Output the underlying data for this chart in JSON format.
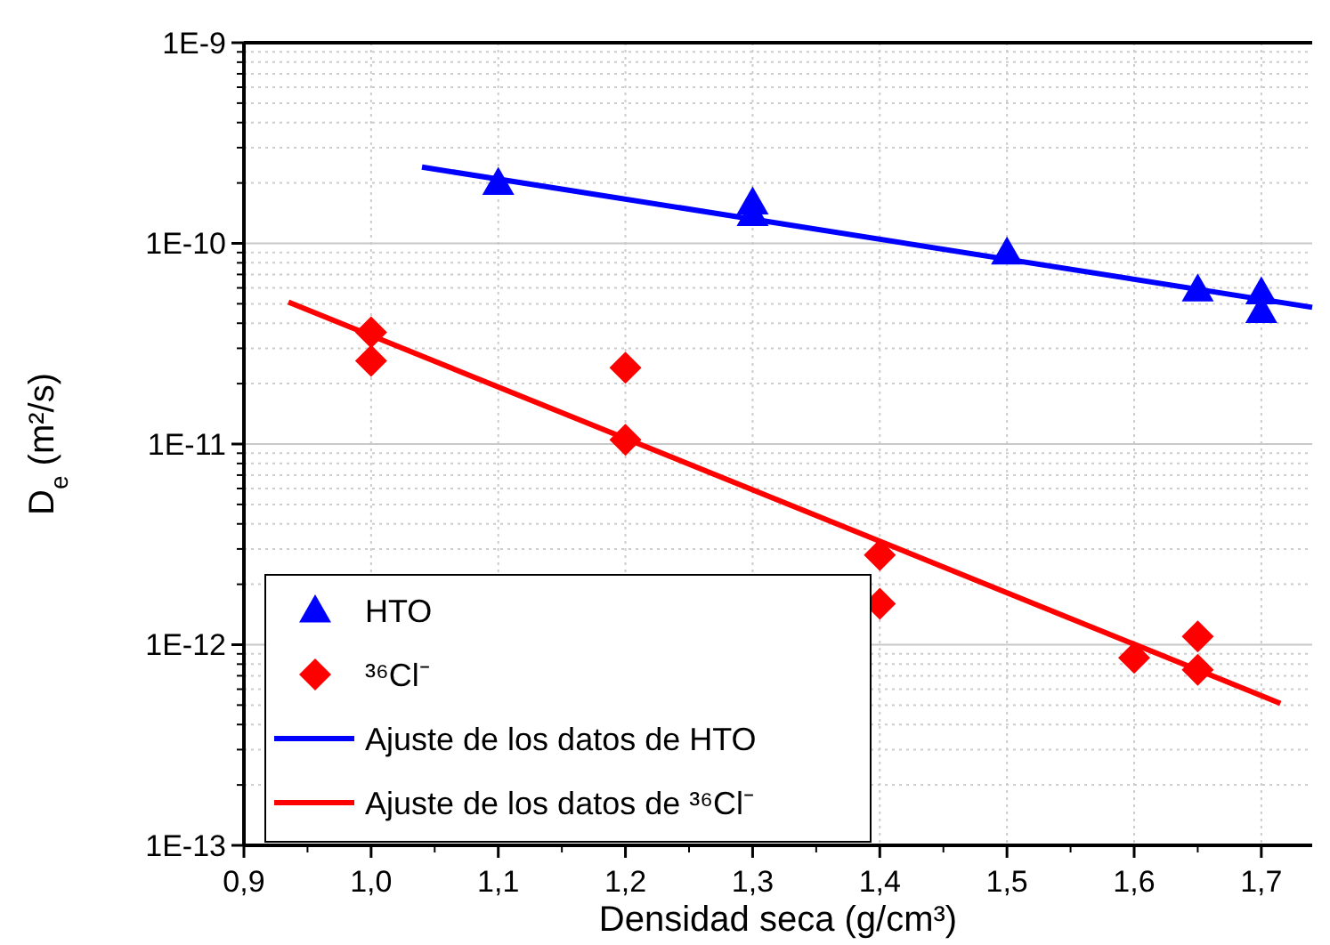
{
  "chart_data": {
    "type": "scatter",
    "xlabel": "Densidad seca (g/cm³)",
    "ylabel": "D$_{e}$ (m²/s)",
    "log": "y",
    "xlim": [
      0.9,
      1.74
    ],
    "xticks": [
      {
        "value": 0.9,
        "label": "0,9"
      },
      {
        "value": 1.0,
        "label": "1,0"
      },
      {
        "value": 1.1,
        "label": "1,1"
      },
      {
        "value": 1.2,
        "label": "1,2"
      },
      {
        "value": 1.3,
        "label": "1,3"
      },
      {
        "value": 1.4,
        "label": "1,4"
      },
      {
        "value": 1.5,
        "label": "1,5"
      },
      {
        "value": 1.6,
        "label": "1,6"
      },
      {
        "value": 1.7,
        "label": "1,7"
      }
    ],
    "ylim": [
      1e-13,
      1e-09
    ],
    "yticks": [
      {
        "value": 1e-13,
        "label": "1E-13"
      },
      {
        "value": 1e-12,
        "label": "1E-12"
      },
      {
        "value": 1e-11,
        "label": "1E-11"
      },
      {
        "value": 1e-10,
        "label": "1E-10"
      },
      {
        "value": 1e-09,
        "label": "1E-9"
      }
    ],
    "grid": true,
    "legend": "bottom left",
    "series": [
      {
        "name": "HTO",
        "marker": "triangle",
        "color": "#0000ff",
        "x": [
          1.1,
          1.3,
          1.3,
          1.5,
          1.65,
          1.7,
          1.7
        ],
        "values": [
          2e-10,
          1.6e-10,
          1.4e-10,
          9e-11,
          5.9e-11,
          5.7e-11,
          4.6e-11
        ]
      },
      {
        "name": "³⁶Cl⁻",
        "marker": "diamond",
        "color": "#ff0000",
        "x": [
          1.0,
          1.0,
          1.2,
          1.2,
          1.4,
          1.4,
          1.6,
          1.65,
          1.65
        ],
        "values": [
          3.6e-11,
          2.6e-11,
          2.4e-11,
          1.05e-11,
          2.8e-12,
          1.6e-12,
          8.6e-13,
          1.1e-12,
          7.5e-13
        ]
      },
      {
        "name": "Ajuste de los datos de HTO",
        "type": "line",
        "color": "#0000ff",
        "x": [
          1.04,
          1.74
        ],
        "values": [
          2.4e-10,
          4.8e-11
        ]
      },
      {
        "name": "Ajuste de los datos de ³⁶Cl⁻",
        "type": "line",
        "color": "#ff0000",
        "x": [
          0.935,
          1.715
        ],
        "values": [
          5.1e-11,
          5.1e-13
        ]
      }
    ]
  }
}
